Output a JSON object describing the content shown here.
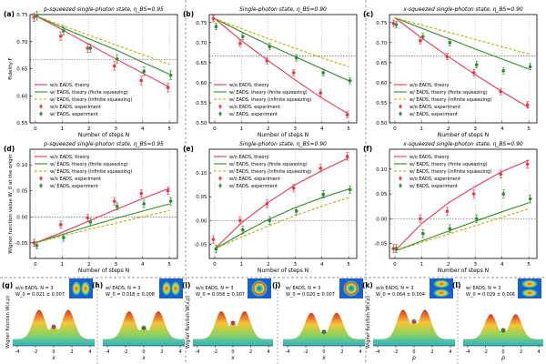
{
  "colors": {
    "red": "#e8384f",
    "green": "#2e8b2e",
    "olive": "#b8b000",
    "threshold": "#444444",
    "surface_peak": "#d9261c",
    "surface_base": "#1fb1c6",
    "inset_bg": "#1a5fd0"
  },
  "chart_data": [
    {
      "type": "line",
      "panel": "(a)",
      "title": "p-squeezed single-photon state, η_BS=0.95",
      "xlabel": "Number of steps N",
      "ylabel": "Fidelity F",
      "xlim": [
        -0.2,
        5.3
      ],
      "ylim": [
        0.55,
        0.75
      ],
      "xticks": [
        0,
        1,
        2,
        3,
        4,
        5
      ],
      "yticks": [
        0.55,
        0.6,
        0.65,
        0.7,
        0.75
      ],
      "threshold": 0.667,
      "x": [
        0,
        1,
        2,
        3,
        4,
        5
      ],
      "legend_position": "bottom-left",
      "series": [
        {
          "name": "w/o EADS, theory",
          "kind": "line",
          "color": "red",
          "values": [
            0.748,
            0.722,
            0.695,
            0.668,
            0.642,
            0.616
          ]
        },
        {
          "name": "w/ EADS, theory (finite squeezing)",
          "kind": "line",
          "color": "green",
          "values": [
            0.748,
            0.726,
            0.705,
            0.685,
            0.662,
            0.64
          ]
        },
        {
          "name": "w/ EADS, theory (infinite squeezing)",
          "kind": "dashed",
          "color": "olive",
          "values": [
            0.748,
            0.73,
            0.712,
            0.694,
            0.676,
            0.658
          ]
        },
        {
          "name": "w/o EADS, experiment",
          "kind": "points",
          "color": "red",
          "values": [
            0.745,
            0.71,
            0.688,
            0.655,
            0.628,
            0.615
          ],
          "errors": [
            0.008,
            0.008,
            0.008,
            0.008,
            0.008,
            0.008
          ]
        },
        {
          "name": "w/ EADS, experiment",
          "kind": "points",
          "color": "green",
          "values": [
            0.748,
            0.72,
            0.688,
            0.668,
            0.645,
            0.638
          ],
          "errors": [
            0.008,
            0.008,
            0.008,
            0.008,
            0.008,
            0.008
          ]
        }
      ]
    },
    {
      "type": "line",
      "panel": "(b)",
      "title": "Single-photon state, η_BS=0.90",
      "xlabel": "Number of steps N",
      "ylabel": "",
      "xlim": [
        -0.2,
        5.3
      ],
      "ylim": [
        0.5,
        0.77
      ],
      "xticks": [
        0,
        1,
        2,
        3,
        4,
        5
      ],
      "yticks": [
        0.5,
        0.55,
        0.6,
        0.65,
        0.7,
        0.75
      ],
      "threshold": 0.667,
      "x": [
        0,
        1,
        2,
        3,
        4,
        5
      ],
      "legend_position": "bottom-left",
      "series": [
        {
          "name": "w/o EADS, theory",
          "kind": "line",
          "color": "red",
          "values": [
            0.76,
            0.705,
            0.655,
            0.607,
            0.562,
            0.522
          ]
        },
        {
          "name": "w/ EADS, theory (finite squeezing)",
          "kind": "line",
          "color": "green",
          "values": [
            0.76,
            0.727,
            0.695,
            0.665,
            0.635,
            0.605
          ]
        },
        {
          "name": "w/ EADS, theory (infinite squeezing)",
          "kind": "dashed",
          "color": "olive",
          "values": [
            0.76,
            0.735,
            0.71,
            0.686,
            0.662,
            0.64
          ]
        },
        {
          "name": "w/o EADS, experiment",
          "kind": "points",
          "color": "red",
          "values": [
            0.76,
            0.698,
            0.655,
            0.625,
            0.575,
            0.52
          ],
          "errors": [
            0.008,
            0.008,
            0.008,
            0.008,
            0.008,
            0.008
          ]
        },
        {
          "name": "w/ EADS, experiment",
          "kind": "points",
          "color": "green",
          "values": [
            0.74,
            0.715,
            0.69,
            0.662,
            0.625,
            0.605
          ],
          "errors": [
            0.008,
            0.008,
            0.008,
            0.008,
            0.008,
            0.008
          ]
        }
      ]
    },
    {
      "type": "line",
      "panel": "(c)",
      "title": "x-squeezed single-photon state, η_BS=0.90",
      "xlabel": "Number of steps N",
      "ylabel": "",
      "xlim": [
        -0.2,
        5.3
      ],
      "ylim": [
        0.5,
        0.77
      ],
      "xticks": [
        0,
        1,
        2,
        3,
        4,
        5
      ],
      "yticks": [
        0.5,
        0.55,
        0.6,
        0.65,
        0.7,
        0.75
      ],
      "threshold": 0.667,
      "x": [
        0,
        1,
        2,
        3,
        4,
        5
      ],
      "legend_position": "bottom-left",
      "series": [
        {
          "name": "w/o EADS, theory",
          "kind": "line",
          "color": "red",
          "values": [
            0.762,
            0.712,
            0.665,
            0.62,
            0.578,
            0.538
          ]
        },
        {
          "name": "w/ EADS, theory (finite squeezing)",
          "kind": "line",
          "color": "green",
          "values": [
            0.762,
            0.736,
            0.71,
            0.684,
            0.659,
            0.634
          ]
        },
        {
          "name": "w/ EADS, theory (infinite squeezing)",
          "kind": "dashed",
          "color": "olive",
          "values": [
            0.762,
            0.744,
            0.726,
            0.708,
            0.69,
            0.672
          ]
        },
        {
          "name": "w/o EADS, experiment",
          "kind": "points",
          "color": "red",
          "values": [
            0.748,
            0.705,
            0.665,
            0.625,
            0.578,
            0.545
          ],
          "errors": [
            0.008,
            0.008,
            0.008,
            0.008,
            0.008,
            0.008
          ]
        },
        {
          "name": "w/ EADS, experiment",
          "kind": "points",
          "color": "green",
          "values": [
            0.745,
            0.715,
            0.7,
            0.645,
            0.63,
            0.64
          ],
          "errors": [
            0.008,
            0.008,
            0.008,
            0.008,
            0.008,
            0.008
          ]
        }
      ]
    },
    {
      "type": "line",
      "panel": "(d)",
      "title": "p-squeezed single-photon state, η_BS=0.95",
      "xlabel": "Number of steps N",
      "ylabel": "Wigner function value W_0 at the origin",
      "xlim": [
        -0.2,
        5.3
      ],
      "ylim": [
        -0.08,
        0.13
      ],
      "xticks": [
        0,
        1,
        2,
        3,
        4,
        5
      ],
      "yticks": [
        -0.05,
        0.0,
        0.05,
        0.1
      ],
      "threshold": 0.0,
      "x": [
        0,
        1,
        2,
        3,
        4,
        5
      ],
      "legend_position": "top-left",
      "series": [
        {
          "name": "w/o EADS, theory",
          "kind": "line",
          "color": "red",
          "values": [
            -0.05,
            -0.03,
            -0.008,
            0.014,
            0.035,
            0.055
          ]
        },
        {
          "name": "w/ EADS, theory (finite squeezing)",
          "kind": "line",
          "color": "green",
          "values": [
            -0.05,
            -0.034,
            -0.018,
            -0.003,
            0.011,
            0.025
          ]
        },
        {
          "name": "w/ EADS, theory (infinite squeezing)",
          "kind": "dashed",
          "color": "olive",
          "values": [
            -0.05,
            -0.037,
            -0.024,
            -0.012,
            0.0,
            0.012
          ]
        },
        {
          "name": "w/o EADS, experiment",
          "kind": "points",
          "color": "red",
          "values": [
            -0.05,
            -0.015,
            -0.002,
            0.03,
            0.045,
            0.05
          ],
          "errors": [
            0.007,
            0.007,
            0.007,
            0.007,
            0.007,
            0.007
          ]
        },
        {
          "name": "w/ EADS, experiment",
          "kind": "points",
          "color": "green",
          "values": [
            -0.055,
            -0.04,
            -0.01,
            0.02,
            0.025,
            0.03
          ],
          "errors": [
            0.007,
            0.007,
            0.007,
            0.007,
            0.007,
            0.007
          ]
        }
      ]
    },
    {
      "type": "line",
      "panel": "(e)",
      "title": "Single-photon state, η_BS=0.90",
      "xlabel": "Number of steps N",
      "ylabel": "",
      "xlim": [
        -0.2,
        5.3
      ],
      "ylim": [
        -0.08,
        0.15
      ],
      "xticks": [
        0,
        1,
        2,
        3,
        4,
        5
      ],
      "yticks": [
        -0.05,
        0.0,
        0.05,
        0.1
      ],
      "threshold": 0.0,
      "x": [
        0,
        1,
        2,
        3,
        4,
        5
      ],
      "legend_position": "top-left",
      "series": [
        {
          "name": "w/o EADS, theory",
          "kind": "line",
          "color": "red",
          "values": [
            -0.06,
            -0.005,
            0.038,
            0.075,
            0.105,
            0.132
          ]
        },
        {
          "name": "w/ EADS, theory (finite squeezing)",
          "kind": "line",
          "color": "green",
          "values": [
            -0.06,
            -0.028,
            0.002,
            0.027,
            0.048,
            0.066
          ]
        },
        {
          "name": "w/ EADS, theory (infinite squeezing)",
          "kind": "dashed",
          "color": "olive",
          "values": [
            -0.06,
            -0.035,
            -0.012,
            0.01,
            0.03,
            0.048
          ]
        },
        {
          "name": "w/o EADS, experiment",
          "kind": "points",
          "color": "red",
          "values": [
            -0.04,
            0.0,
            0.035,
            0.068,
            0.11,
            0.135
          ],
          "errors": [
            0.008,
            0.008,
            0.008,
            0.008,
            0.008,
            0.008
          ]
        },
        {
          "name": "w/ EADS, experiment",
          "kind": "points",
          "color": "green",
          "values": [
            -0.06,
            -0.02,
            0.0,
            0.02,
            0.055,
            0.065
          ],
          "errors": [
            0.008,
            0.008,
            0.008,
            0.008,
            0.008,
            0.008
          ]
        }
      ]
    },
    {
      "type": "line",
      "panel": "(f)",
      "title": "x-squeezed single-photon state, η_BS=0.90",
      "xlabel": "Number of steps N",
      "ylabel": "",
      "xlim": [
        -0.2,
        5.3
      ],
      "ylim": [
        -0.08,
        0.14
      ],
      "xticks": [
        0,
        1,
        2,
        3,
        4,
        5
      ],
      "yticks": [
        -0.05,
        0.0,
        0.05,
        0.1
      ],
      "threshold": 0.0,
      "x": [
        0,
        1,
        2,
        3,
        4,
        5
      ],
      "legend_position": "top-left",
      "series": [
        {
          "name": "w/o EADS, theory",
          "kind": "line",
          "color": "red",
          "values": [
            -0.065,
            -0.01,
            0.032,
            0.065,
            0.095,
            0.118
          ]
        },
        {
          "name": "w/ EADS, theory (finite squeezing)",
          "kind": "line",
          "color": "green",
          "values": [
            -0.065,
            -0.045,
            -0.025,
            -0.005,
            0.014,
            0.032
          ]
        },
        {
          "name": "w/ EADS, theory (infinite squeezing)",
          "kind": "dashed",
          "color": "olive",
          "values": [
            -0.065,
            -0.048,
            -0.031,
            -0.014,
            0.003,
            0.02
          ]
        },
        {
          "name": "w/o EADS, experiment",
          "kind": "points",
          "color": "red",
          "values": [
            -0.06,
            0.0,
            0.015,
            0.05,
            0.09,
            0.11
          ],
          "errors": [
            0.008,
            0.008,
            0.008,
            0.008,
            0.008,
            0.008
          ]
        },
        {
          "name": "w/ EADS, experiment",
          "kind": "points",
          "color": "green",
          "values": [
            -0.06,
            -0.03,
            -0.02,
            0.0,
            0.05,
            0.04
          ],
          "errors": [
            0.008,
            0.008,
            0.008,
            0.008,
            0.008,
            0.008
          ]
        }
      ]
    },
    {
      "type": "area",
      "panel": "(g)",
      "xlabel": "x",
      "ylabel": "Wigner function W(x,p)",
      "xticks": [
        -4,
        -2,
        0,
        2,
        4
      ],
      "annotation_line1": "w/o EADS, N = 3",
      "annotation_line2": "W_0 = 0.021 ± 0.007",
      "profile": {
        "peaks": [
          -1.6,
          1.6
        ],
        "peak_height": 1.0,
        "center": 0.42
      },
      "marker": {
        "color": "red"
      },
      "inset": "double-lobe-horizontal"
    },
    {
      "type": "area",
      "panel": "(h)",
      "xlabel": "x",
      "ylabel": "",
      "xticks": [
        -4,
        -2,
        0,
        2,
        4
      ],
      "annotation_line1": "w/ EADS, N = 3",
      "annotation_line2": "W_0 = 0.018 ± 0.008",
      "profile": {
        "peaks": [
          -1.6,
          1.6
        ],
        "peak_height": 0.95,
        "center": 0.38
      },
      "marker": {
        "color": "green"
      },
      "inset": "double-lobe-horizontal"
    },
    {
      "type": "area",
      "panel": "(i)",
      "xlabel": "x",
      "ylabel": "Wigner function W(x,p)",
      "xticks": [
        -4,
        -2,
        0,
        2,
        4
      ],
      "annotation_line1": "w/o EADS, N = 3",
      "annotation_line2": "W_0 = 0.058 ± 0.007",
      "profile": {
        "peaks": [
          -1.3,
          1.3
        ],
        "peak_height": 0.95,
        "center": 0.55
      },
      "marker": {
        "color": "red"
      },
      "inset": "ring"
    },
    {
      "type": "area",
      "panel": "(j)",
      "xlabel": "x",
      "ylabel": "",
      "xticks": [
        -4,
        -2,
        0,
        2,
        4
      ],
      "annotation_line1": "w/ EADS, N = 3",
      "annotation_line2": "W_0 = 0.020 ± 0.007",
      "profile": {
        "peaks": [
          -1.4,
          1.4
        ],
        "peak_height": 0.9,
        "center": 0.25
      },
      "marker": {
        "color": "green"
      },
      "inset": "ring"
    },
    {
      "type": "area",
      "panel": "(k)",
      "xlabel": "p",
      "ylabel": "Wigner function W(x,p)",
      "xticks": [
        -4,
        -2,
        0,
        2,
        4
      ],
      "annotation_line1": "w/o EADS, N = 3",
      "annotation_line2": "W_0 = 0.064 ± 0.004",
      "profile": {
        "peaks": [
          -1.2,
          1.2
        ],
        "peak_height": 1.0,
        "center": 0.6
      },
      "marker": {
        "color": "red"
      },
      "inset": "double-lobe-vertical"
    },
    {
      "type": "area",
      "panel": "(l)",
      "xlabel": "p",
      "ylabel": "",
      "xticks": [
        -4,
        -2,
        0,
        2,
        4
      ],
      "annotation_line1": "w/ EADS, N = 3",
      "annotation_line2": "W_0 = 0.029 ± 0.006",
      "profile": {
        "peaks": [
          -1.4,
          1.4
        ],
        "peak_height": 0.85,
        "center": 0.3
      },
      "marker": {
        "color": "green"
      },
      "inset": "double-lobe-vertical"
    }
  ]
}
